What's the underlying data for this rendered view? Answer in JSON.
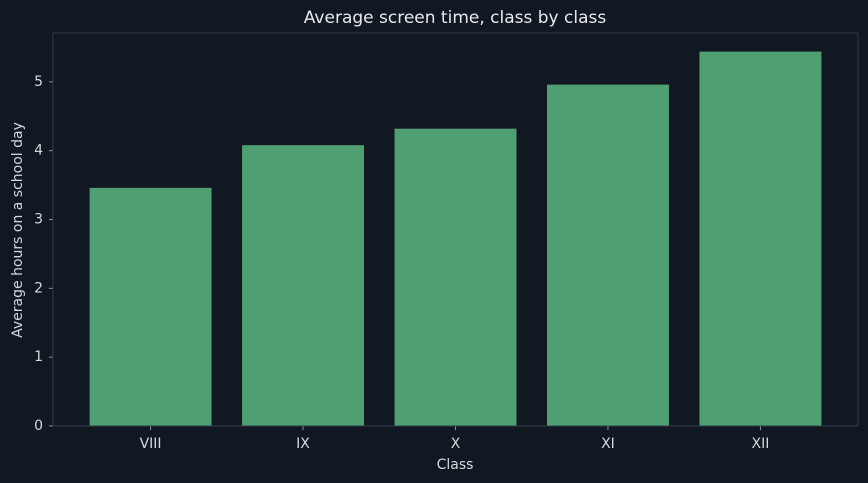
{
  "chart_data": {
    "type": "bar",
    "title": "Average screen time, class by class",
    "x_label": "Class",
    "y_label": "Average hours on a school day",
    "categories": [
      "VIII",
      "IX",
      "X",
      "XI",
      "XII"
    ],
    "values": [
      3.46,
      4.08,
      4.32,
      4.96,
      5.44
    ],
    "color": "#4e9f72",
    "ylim": [
      0,
      5.71
    ],
    "yticks": [
      0,
      1,
      2,
      3,
      4,
      5
    ],
    "grid": false
  }
}
